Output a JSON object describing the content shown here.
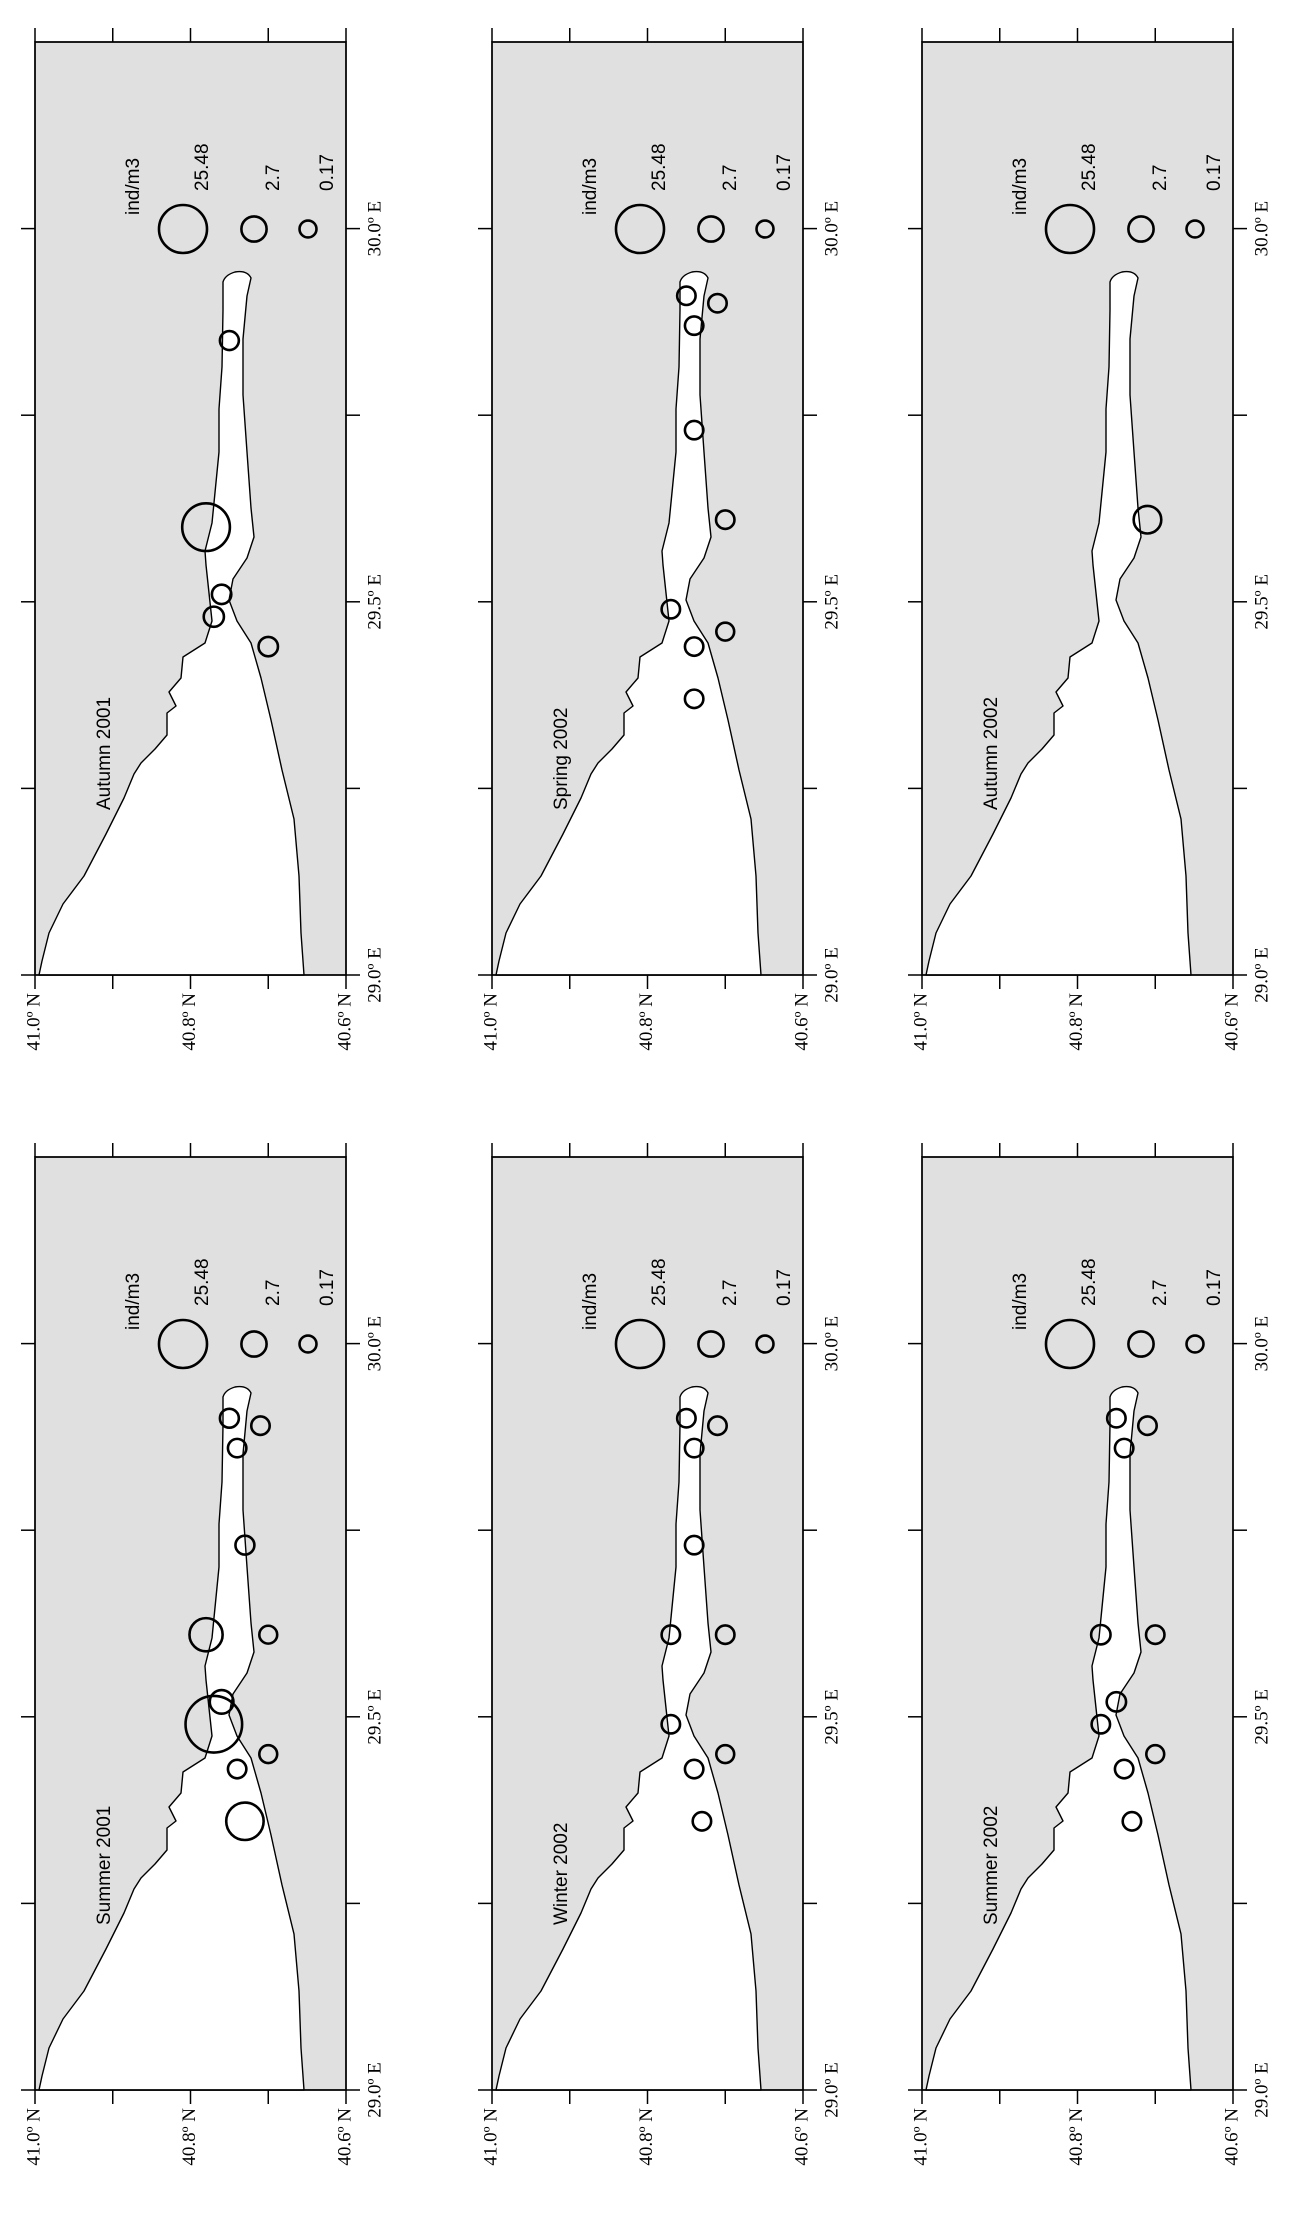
{
  "chart_data": [
    {
      "type": "bubble-map",
      "title": "Summer 2001",
      "xlim": [
        29.0,
        30.25
      ],
      "ylim": [
        40.6,
        41.0
      ],
      "xticks": [
        {
          "value": 29.0,
          "label": "29.0º E"
        },
        {
          "value": 29.5,
          "label": "29.5º E"
        },
        {
          "value": 30.0,
          "label": "30.0º E"
        }
      ],
      "minor_xticks": [
        29.25,
        29.75
      ],
      "yticks": [
        {
          "value": 40.6,
          "label": "40.6º N"
        },
        {
          "value": 40.8,
          "label": "40.8º N"
        },
        {
          "value": 41.0,
          "label": "41.0º N"
        }
      ],
      "minor_yticks": [
        40.7,
        40.9
      ],
      "x": [
        29.36,
        29.43,
        29.45,
        29.49,
        29.52,
        29.61,
        29.61,
        29.73,
        29.86,
        29.89,
        29.9
      ],
      "y": [
        40.73,
        40.74,
        40.7,
        40.77,
        40.76,
        40.78,
        40.7,
        40.73,
        40.74,
        40.71,
        40.75
      ],
      "values": [
        12,
        0.4,
        0.3,
        40,
        2,
        8,
        0.3,
        0.5,
        0.4,
        0.4,
        0.5
      ],
      "legend": {
        "title": "ind/m3",
        "values": [
          25.48,
          2.7,
          0.17
        ]
      }
    },
    {
      "type": "bubble-map",
      "title": "Autumn 2001",
      "xlim": [
        29.0,
        30.25
      ],
      "ylim": [
        40.6,
        41.0
      ],
      "xticks": [
        {
          "value": 29.0,
          "label": "29.0º E"
        },
        {
          "value": 29.5,
          "label": "29.5º E"
        },
        {
          "value": 30.0,
          "label": "30.0º E"
        }
      ],
      "minor_xticks": [
        29.25,
        29.75
      ],
      "yticks": [
        {
          "value": 40.6,
          "label": "40.6º N"
        },
        {
          "value": 40.8,
          "label": "40.8º N"
        },
        {
          "value": 41.0,
          "label": "41.0º N"
        }
      ],
      "minor_yticks": [
        40.7,
        40.9
      ],
      "x": [
        29.44,
        29.48,
        29.51,
        29.6,
        29.85
      ],
      "y": [
        40.7,
        40.77,
        40.76,
        40.78,
        40.75
      ],
      "values": [
        0.6,
        0.8,
        0.6,
        25,
        0.5
      ],
      "legend": {
        "title": "ind/m3",
        "values": [
          25.48,
          2.7,
          0.17
        ]
      }
    },
    {
      "type": "bubble-map",
      "title": "Winter 2002",
      "xlim": [
        29.0,
        30.25
      ],
      "ylim": [
        40.6,
        41.0
      ],
      "xticks": [
        {
          "value": 29.0,
          "label": "29.0º E"
        },
        {
          "value": 29.5,
          "label": "29.5º E"
        },
        {
          "value": 30.0,
          "label": "30.0º E"
        }
      ],
      "minor_xticks": [
        29.25,
        29.75
      ],
      "yticks": [
        {
          "value": 40.6,
          "label": "40.6º N"
        },
        {
          "value": 40.8,
          "label": "40.8º N"
        },
        {
          "value": 41.0,
          "label": "41.0º N"
        }
      ],
      "minor_yticks": [
        40.7,
        40.9
      ],
      "x": [
        29.36,
        29.43,
        29.45,
        29.49,
        29.61,
        29.61,
        29.73,
        29.86,
        29.89,
        29.9
      ],
      "y": [
        40.73,
        40.74,
        40.7,
        40.77,
        40.77,
        40.7,
        40.74,
        40.74,
        40.71,
        40.75
      ],
      "values": [
        0.4,
        0.4,
        0.3,
        0.4,
        0.4,
        0.4,
        0.4,
        0.4,
        0.4,
        0.4
      ],
      "legend": {
        "title": "ind/m3",
        "values": [
          25.48,
          2.7,
          0.17
        ]
      }
    },
    {
      "type": "bubble-map",
      "title": "Spring 2002",
      "xlim": [
        29.0,
        30.25
      ],
      "ylim": [
        40.6,
        41.0
      ],
      "xticks": [
        {
          "value": 29.0,
          "label": "29.0º E"
        },
        {
          "value": 29.5,
          "label": "29.5º E"
        },
        {
          "value": 30.0,
          "label": "30.0º E"
        }
      ],
      "minor_xticks": [
        29.25,
        29.75
      ],
      "yticks": [
        {
          "value": 40.6,
          "label": "40.6º N"
        },
        {
          "value": 40.8,
          "label": "40.8º N"
        },
        {
          "value": 41.0,
          "label": "41.0º N"
        }
      ],
      "minor_yticks": [
        40.7,
        40.9
      ],
      "x": [
        29.37,
        29.44,
        29.46,
        29.49,
        29.61,
        29.73,
        29.87,
        29.9,
        29.91
      ],
      "y": [
        40.74,
        40.74,
        40.7,
        40.77,
        40.7,
        40.74,
        40.74,
        40.71,
        40.75
      ],
      "values": [
        0.4,
        0.4,
        0.3,
        0.4,
        0.4,
        0.4,
        0.4,
        0.4,
        0.4
      ],
      "legend": {
        "title": "ind/m3",
        "values": [
          25.48,
          2.7,
          0.17
        ]
      }
    },
    {
      "type": "bubble-map",
      "title": "Summer 2002",
      "xlim": [
        29.0,
        30.25
      ],
      "ylim": [
        40.6,
        41.0
      ],
      "xticks": [
        {
          "value": 29.0,
          "label": "29.0º E"
        },
        {
          "value": 29.5,
          "label": "29.5º E"
        },
        {
          "value": 30.0,
          "label": "30.0º E"
        }
      ],
      "minor_xticks": [
        29.25,
        29.75
      ],
      "yticks": [
        {
          "value": 40.6,
          "label": "40.6º N"
        },
        {
          "value": 40.8,
          "label": "40.8º N"
        },
        {
          "value": 41.0,
          "label": "41.0º N"
        }
      ],
      "minor_yticks": [
        40.7,
        40.9
      ],
      "x": [
        29.36,
        29.43,
        29.45,
        29.49,
        29.52,
        29.61,
        29.61,
        29.86,
        29.89,
        29.9
      ],
      "y": [
        40.73,
        40.74,
        40.7,
        40.77,
        40.75,
        40.77,
        40.7,
        40.74,
        40.71,
        40.75
      ],
      "values": [
        0.4,
        0.4,
        0.3,
        0.4,
        0.6,
        0.6,
        0.4,
        0.4,
        0.4,
        0.4
      ],
      "legend": {
        "title": "ind/m3",
        "values": [
          25.48,
          2.7,
          0.17
        ]
      }
    },
    {
      "type": "bubble-map",
      "title": "Autumn 2002",
      "xlim": [
        29.0,
        30.25
      ],
      "ylim": [
        40.6,
        41.0
      ],
      "xticks": [
        {
          "value": 29.0,
          "label": "29.0º E"
        },
        {
          "value": 29.5,
          "label": "29.5º E"
        },
        {
          "value": 30.0,
          "label": "30.0º E"
        }
      ],
      "minor_xticks": [
        29.25,
        29.75
      ],
      "yticks": [
        {
          "value": 40.6,
          "label": "40.6º N"
        },
        {
          "value": 40.8,
          "label": "40.8º N"
        },
        {
          "value": 41.0,
          "label": "41.0º N"
        }
      ],
      "minor_yticks": [
        40.7,
        40.9
      ],
      "x": [
        29.61
      ],
      "y": [
        40.71
      ],
      "values": [
        4
      ],
      "legend": {
        "title": "ind/m3",
        "values": [
          25.48,
          2.7,
          0.17
        ]
      }
    }
  ]
}
